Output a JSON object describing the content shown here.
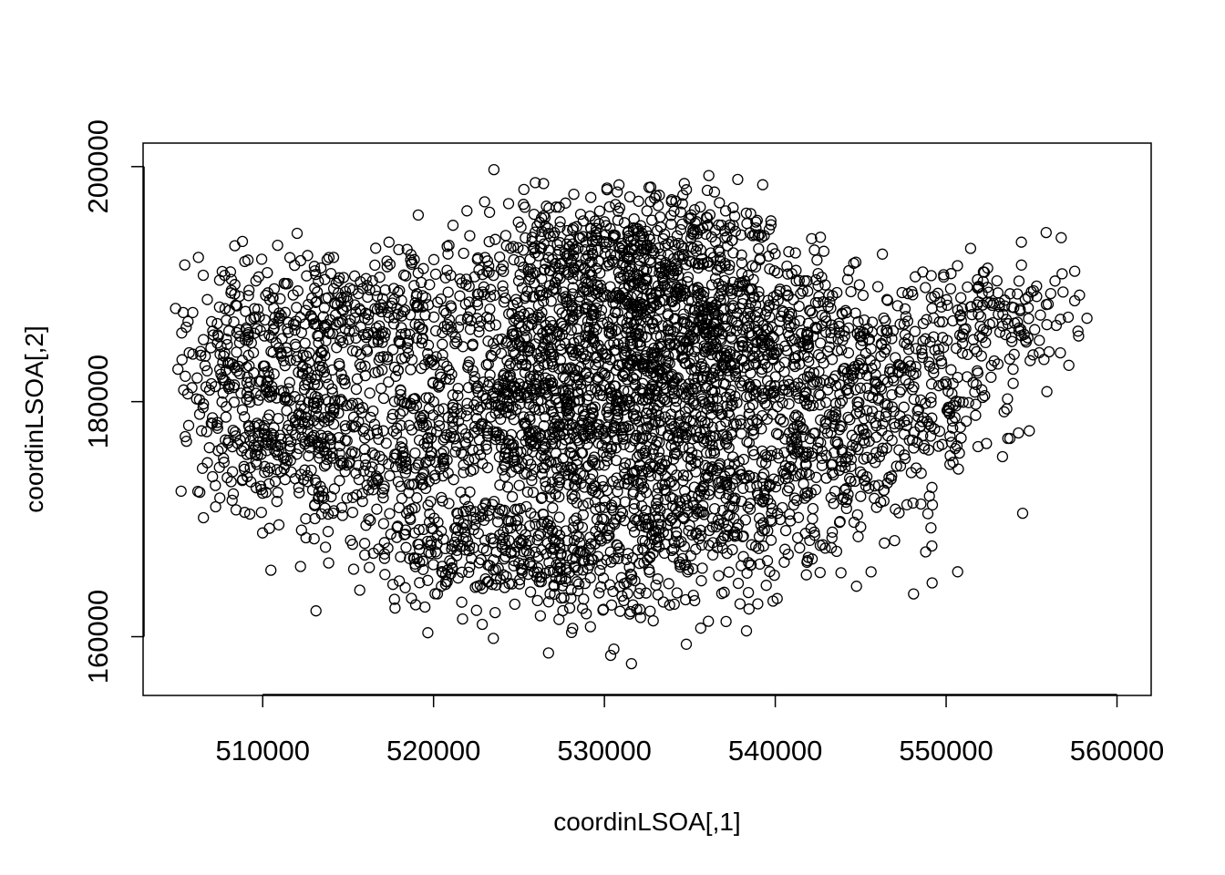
{
  "chart_data": {
    "type": "scatter",
    "title": "",
    "xlabel": "coordinLSOA[,1]",
    "ylabel": "coordinLSOA[,2]",
    "xlim": [
      503000,
      562000
    ],
    "ylim": [
      155000,
      202000
    ],
    "x_ticks": [
      510000,
      520000,
      530000,
      540000,
      550000,
      560000
    ],
    "y_ticks": [
      160000,
      180000,
      200000
    ],
    "x_tick_labels": [
      "510000",
      "520000",
      "530000",
      "540000",
      "550000",
      "560000"
    ],
    "y_tick_labels": [
      "160000",
      "180000",
      "200000"
    ],
    "marker": "open-circle",
    "marker_color": "#000000",
    "grid": false,
    "legend": "none",
    "point_count_estimate": 4800,
    "extent": {
      "x": [
        504900,
        559600
      ],
      "y": [
        156500,
        199800
      ]
    },
    "density_clusters": [
      {
        "x": 531500,
        "y": 180000,
        "sx": 5000,
        "sy": 6500,
        "weight": 0.17
      },
      {
        "x": 525000,
        "y": 180000,
        "sx": 3500,
        "sy": 4500,
        "weight": 0.09
      },
      {
        "x": 534000,
        "y": 186000,
        "sx": 3500,
        "sy": 5000,
        "weight": 0.09
      },
      {
        "x": 533500,
        "y": 193000,
        "sx": 3500,
        "sy": 3000,
        "weight": 0.05
      },
      {
        "x": 527500,
        "y": 191500,
        "sx": 3500,
        "sy": 3000,
        "weight": 0.05
      },
      {
        "x": 516000,
        "y": 187500,
        "sx": 4500,
        "sy": 3000,
        "weight": 0.06
      },
      {
        "x": 512000,
        "y": 180000,
        "sx": 3500,
        "sy": 4500,
        "weight": 0.06
      },
      {
        "x": 508000,
        "y": 183000,
        "sx": 2200,
        "sy": 4000,
        "weight": 0.03
      },
      {
        "x": 514500,
        "y": 175000,
        "sx": 4000,
        "sy": 2700,
        "weight": 0.05
      },
      {
        "x": 520500,
        "y": 168000,
        "sx": 3000,
        "sy": 2500,
        "weight": 0.04
      },
      {
        "x": 528000,
        "y": 166500,
        "sx": 3500,
        "sy": 2500,
        "weight": 0.05
      },
      {
        "x": 535500,
        "y": 170000,
        "sx": 3500,
        "sy": 4000,
        "weight": 0.06
      },
      {
        "x": 541500,
        "y": 184500,
        "sx": 4000,
        "sy": 3500,
        "weight": 0.07
      },
      {
        "x": 542500,
        "y": 175500,
        "sx": 3500,
        "sy": 4000,
        "weight": 0.06
      },
      {
        "x": 548500,
        "y": 180000,
        "sx": 3000,
        "sy": 3500,
        "weight": 0.04
      },
      {
        "x": 552500,
        "y": 187500,
        "sx": 2500,
        "sy": 2500,
        "weight": 0.03
      }
    ]
  }
}
